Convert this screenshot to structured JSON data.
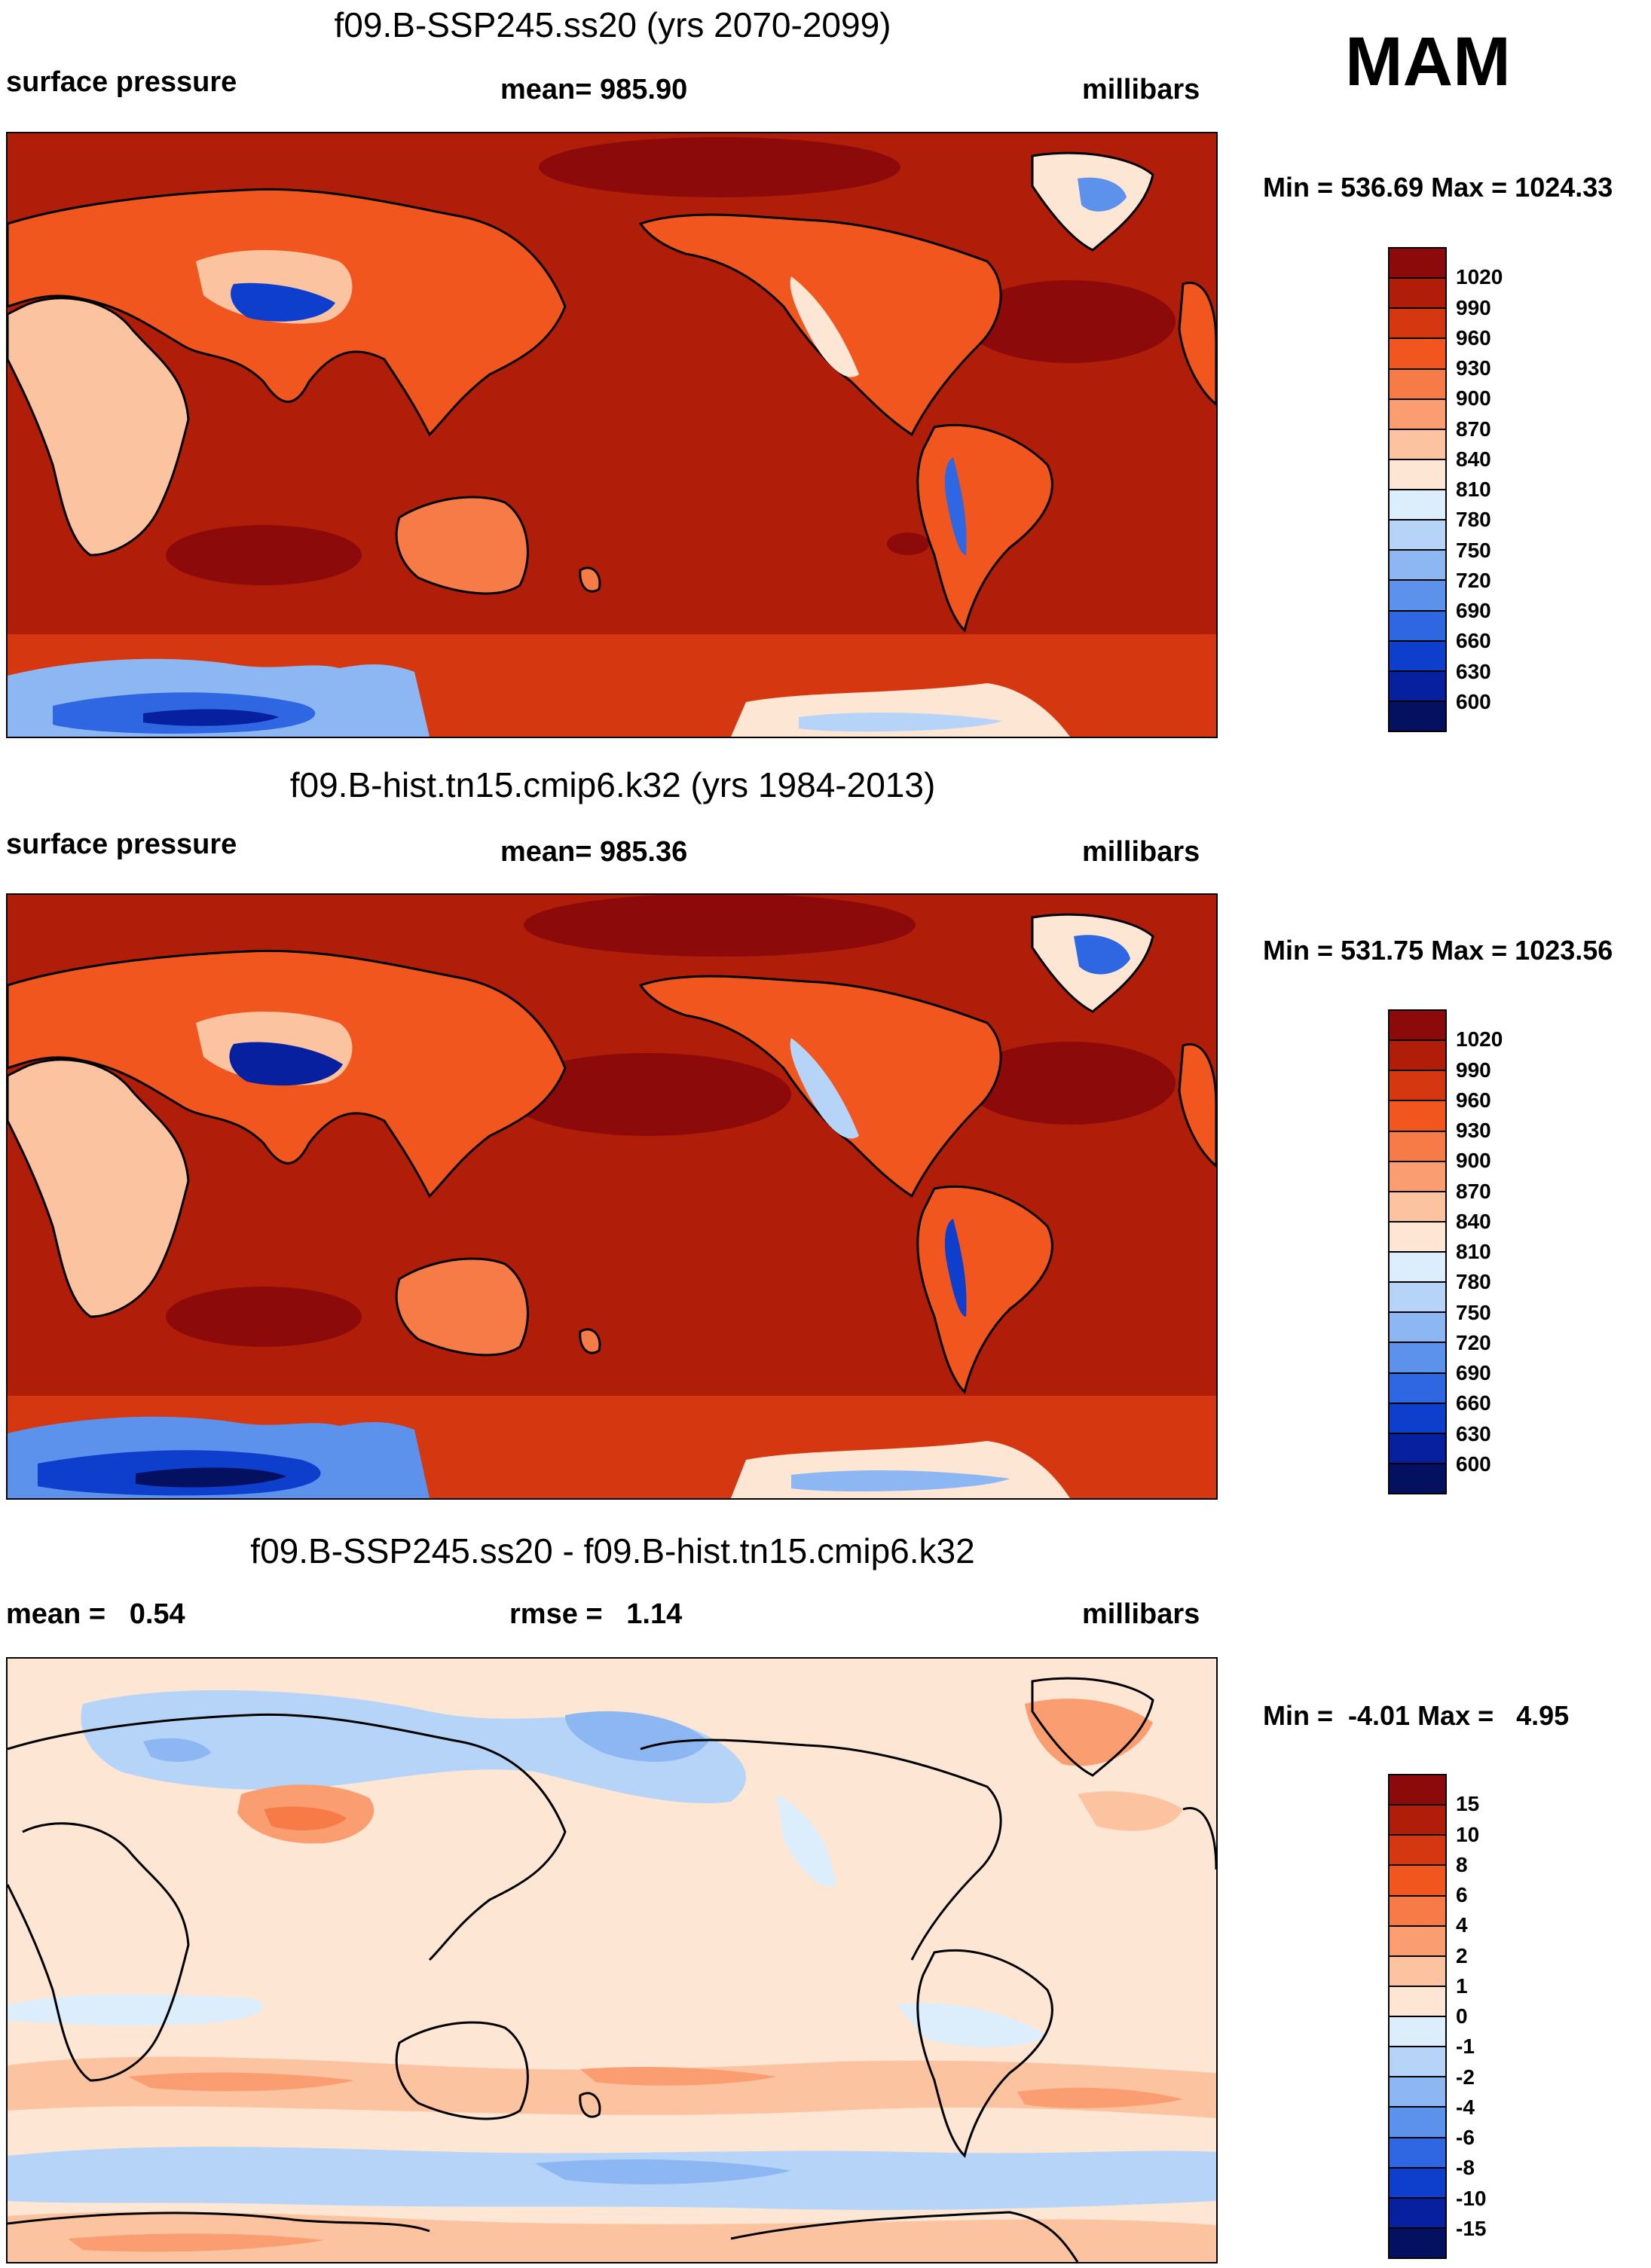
{
  "season": "MAM",
  "panels": [
    {
      "id": "future",
      "title": "f09.B-SSP245.ss20 (yrs 2070-2099)",
      "left_label": "surface pressure",
      "center_label": "mean= 985.90",
      "right_label": "millibars",
      "minmax": "Min = 536.69 Max = 1024.33"
    },
    {
      "id": "hist",
      "title": "f09.B-hist.tn15.cmip6.k32 (yrs 1984-2013)",
      "left_label": "surface pressure",
      "center_label": "mean= 985.36",
      "right_label": "millibars",
      "minmax": "Min = 531.75 Max = 1023.56"
    },
    {
      "id": "diff",
      "title": "f09.B-SSP245.ss20 - f09.B-hist.tn15.cmip6.k32",
      "left_label": "mean =   0.54",
      "center_label": "rmse =   1.14",
      "right_label": "millibars",
      "minmax": "Min =  -4.01 Max =   4.95"
    }
  ],
  "colorbars": {
    "absolute": {
      "levels": [
        "1020",
        "990",
        "960",
        "930",
        "900",
        "870",
        "840",
        "810",
        "780",
        "750",
        "720",
        "690",
        "660",
        "630",
        "600"
      ],
      "colors": [
        "#8c0a0a",
        "#b01e0a",
        "#d53710",
        "#f0561e",
        "#f77b47",
        "#fa9e72",
        "#fcc3a0",
        "#fde6d3",
        "#dceefb",
        "#b6d4f7",
        "#8db7f2",
        "#5c91ec",
        "#2f66e2",
        "#0e3fcc",
        "#0620a0",
        "#041060"
      ]
    },
    "difference": {
      "levels": [
        "15",
        "10",
        "8",
        "6",
        "4",
        "2",
        "1",
        "0",
        "-1",
        "-2",
        "-4",
        "-6",
        "-8",
        "-10",
        "-15"
      ],
      "colors": [
        "#8c0a0a",
        "#b01e0a",
        "#d53710",
        "#f0561e",
        "#f77b47",
        "#fa9e72",
        "#fcc3a0",
        "#fde6d3",
        "#dceefb",
        "#b6d4f7",
        "#8db7f2",
        "#5c91ec",
        "#2f66e2",
        "#0e3fcc",
        "#0620a0",
        "#041060"
      ]
    }
  },
  "chart_data": [
    {
      "type": "heatmap",
      "title": "f09.B-SSP245.ss20 (yrs 2070-2099)",
      "variable": "surface pressure",
      "units": "millibars",
      "season": "MAM",
      "mean": 985.9,
      "min": 536.69,
      "max": 1024.33,
      "contour_levels": [
        600,
        630,
        660,
        690,
        720,
        750,
        780,
        810,
        840,
        870,
        900,
        930,
        960,
        990,
        1020
      ]
    },
    {
      "type": "heatmap",
      "title": "f09.B-hist.tn15.cmip6.k32 (yrs 1984-2013)",
      "variable": "surface pressure",
      "units": "millibars",
      "season": "MAM",
      "mean": 985.36,
      "min": 531.75,
      "max": 1023.56,
      "contour_levels": [
        600,
        630,
        660,
        690,
        720,
        750,
        780,
        810,
        840,
        870,
        900,
        930,
        960,
        990,
        1020
      ]
    },
    {
      "type": "heatmap",
      "title": "f09.B-SSP245.ss20 - f09.B-hist.tn15.cmip6.k32",
      "units": "millibars",
      "season": "MAM",
      "mean": 0.54,
      "rmse": 1.14,
      "min": -4.01,
      "max": 4.95,
      "contour_levels": [
        -15,
        -10,
        -8,
        -6,
        -4,
        -2,
        -1,
        0,
        1,
        2,
        4,
        6,
        8,
        10,
        15
      ]
    }
  ]
}
